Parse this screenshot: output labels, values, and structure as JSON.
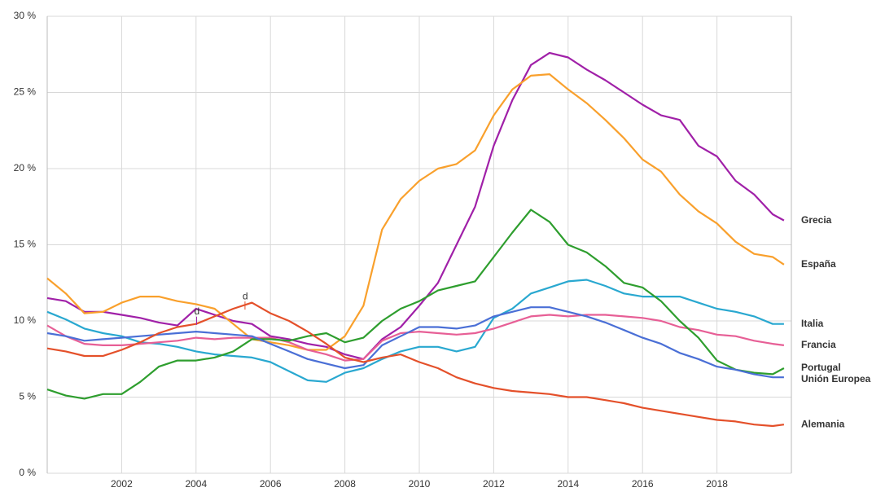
{
  "chart_data": {
    "type": "line",
    "x": [
      2000,
      2000.5,
      2001,
      2001.5,
      2002,
      2002.5,
      2003,
      2003.5,
      2004,
      2004.5,
      2005,
      2005.5,
      2006,
      2006.5,
      2007,
      2007.5,
      2008,
      2008.5,
      2009,
      2009.5,
      2010,
      2010.5,
      2011,
      2011.5,
      2012,
      2012.5,
      2013,
      2013.5,
      2014,
      2014.5,
      2015,
      2015.5,
      2016,
      2016.5,
      2017,
      2017.5,
      2018,
      2018.5,
      2019,
      2019.5,
      2019.8
    ],
    "series": [
      {
        "name": "Grecia",
        "color": "#a020a8",
        "values": [
          11.5,
          11.3,
          10.6,
          10.6,
          10.4,
          10.2,
          9.9,
          9.7,
          10.8,
          10.4,
          10.0,
          9.8,
          9.0,
          8.8,
          8.5,
          8.3,
          7.8,
          7.5,
          8.8,
          9.6,
          11.0,
          12.5,
          15.0,
          17.5,
          21.5,
          24.5,
          26.8,
          27.6,
          27.3,
          26.5,
          25.8,
          25.0,
          24.2,
          23.5,
          23.2,
          21.5,
          20.8,
          19.2,
          18.3,
          17.0,
          16.6
        ]
      },
      {
        "name": "España",
        "color": "#f9a02c",
        "values": [
          12.8,
          11.8,
          10.5,
          10.6,
          11.2,
          11.6,
          11.6,
          11.3,
          11.1,
          10.8,
          9.8,
          8.8,
          8.6,
          8.4,
          8.1,
          8.1,
          9.0,
          11.0,
          16.0,
          18.0,
          19.2,
          20.0,
          20.3,
          21.2,
          23.5,
          25.2,
          26.1,
          26.2,
          25.2,
          24.3,
          23.2,
          22.0,
          20.6,
          19.8,
          18.3,
          17.2,
          16.4,
          15.2,
          14.4,
          14.2,
          13.7
        ]
      },
      {
        "name": "Italia",
        "color": "#29a8d0",
        "values": [
          10.6,
          10.1,
          9.5,
          9.2,
          9.0,
          8.6,
          8.5,
          8.3,
          8.0,
          7.8,
          7.7,
          7.6,
          7.3,
          6.7,
          6.1,
          6.0,
          6.6,
          6.9,
          7.5,
          8.0,
          8.3,
          8.3,
          8.0,
          8.3,
          10.2,
          10.8,
          11.8,
          12.2,
          12.6,
          12.7,
          12.3,
          11.8,
          11.6,
          11.6,
          11.6,
          11.2,
          10.8,
          10.6,
          10.3,
          9.8,
          9.8
        ]
      },
      {
        "name": "Francia",
        "color": "#e75f96",
        "values": [
          9.7,
          9.0,
          8.5,
          8.4,
          8.4,
          8.5,
          8.6,
          8.7,
          8.9,
          8.8,
          8.9,
          8.9,
          8.9,
          8.6,
          8.1,
          7.8,
          7.4,
          7.5,
          8.7,
          9.2,
          9.3,
          9.2,
          9.1,
          9.2,
          9.5,
          9.9,
          10.3,
          10.4,
          10.3,
          10.4,
          10.4,
          10.3,
          10.2,
          10.0,
          9.6,
          9.4,
          9.1,
          9.0,
          8.7,
          8.5,
          8.4
        ]
      },
      {
        "name": "Portugal",
        "color": "#2e9e2e",
        "values": [
          5.5,
          5.1,
          4.9,
          5.2,
          5.2,
          6.0,
          7.0,
          7.4,
          7.4,
          7.6,
          8.0,
          8.8,
          8.8,
          8.7,
          9.0,
          9.2,
          8.6,
          8.9,
          10.0,
          10.8,
          11.3,
          12.0,
          12.3,
          12.6,
          14.2,
          15.8,
          17.3,
          16.5,
          15.0,
          14.5,
          13.6,
          12.5,
          12.2,
          11.3,
          10.0,
          8.9,
          7.4,
          6.8,
          6.6,
          6.5,
          6.9
        ]
      },
      {
        "name": "Unión Europea",
        "color": "#4a6fd6",
        "values": [
          9.2,
          9.0,
          8.7,
          8.8,
          8.9,
          9.0,
          9.1,
          9.2,
          9.3,
          9.2,
          9.1,
          9.0,
          8.5,
          8.0,
          7.5,
          7.2,
          6.9,
          7.1,
          8.4,
          9.0,
          9.6,
          9.6,
          9.5,
          9.7,
          10.3,
          10.6,
          10.9,
          10.9,
          10.6,
          10.3,
          9.9,
          9.4,
          8.9,
          8.5,
          7.9,
          7.5,
          7.0,
          6.8,
          6.5,
          6.3,
          6.3
        ]
      },
      {
        "name": "Alemania",
        "color": "#e4502a",
        "values": [
          8.2,
          8.0,
          7.7,
          7.7,
          8.1,
          8.6,
          9.2,
          9.6,
          9.8,
          10.3,
          10.8,
          11.2,
          10.5,
          10.0,
          9.3,
          8.5,
          7.6,
          7.3,
          7.6,
          7.8,
          7.3,
          6.9,
          6.3,
          5.9,
          5.6,
          5.4,
          5.3,
          5.2,
          5.0,
          5.0,
          4.8,
          4.6,
          4.3,
          4.1,
          3.9,
          3.7,
          3.5,
          3.4,
          3.2,
          3.1,
          3.2
        ]
      }
    ],
    "annotations": [
      {
        "text": "d",
        "x": 2003.95,
        "y": 10.6,
        "color": "#a020a8"
      },
      {
        "text": "d",
        "x": 2005.25,
        "y": 11.6,
        "color": "#e4502a"
      }
    ],
    "xlim": [
      2000,
      2020
    ],
    "xticks": [
      2002,
      2004,
      2006,
      2008,
      2010,
      2012,
      2014,
      2016,
      2018
    ],
    "ylim": [
      0,
      30
    ],
    "yticks": [
      {
        "value": 0,
        "label": "0 %"
      },
      {
        "value": 5,
        "label": "5 %"
      },
      {
        "value": 10,
        "label": "10 %"
      },
      {
        "value": 15,
        "label": "15 %"
      },
      {
        "value": 20,
        "label": "20 %"
      },
      {
        "value": 25,
        "label": "25 %"
      },
      {
        "value": 30,
        "label": "30 %"
      }
    ],
    "grid": true
  }
}
